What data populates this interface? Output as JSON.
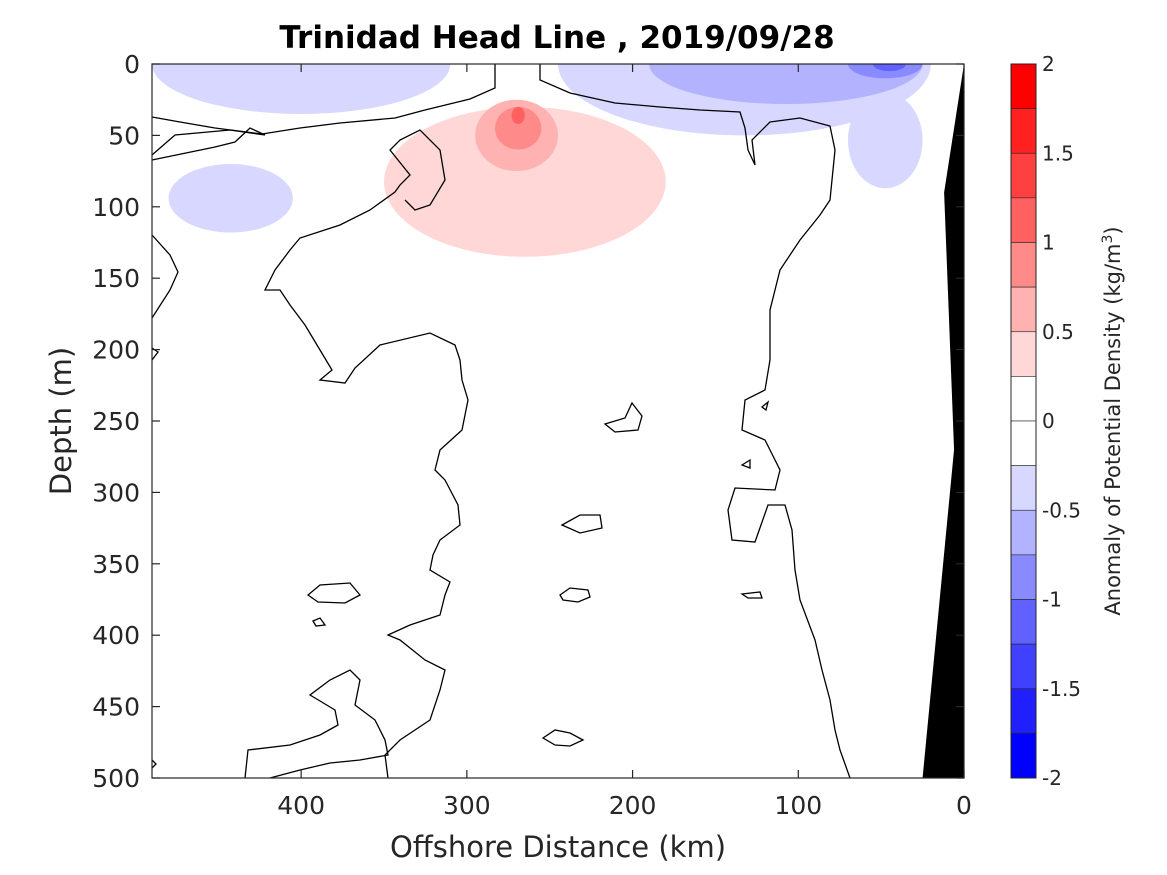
{
  "chart_data": {
    "type": "heatmap",
    "title": "Trinidad Head Line , 2019/09/28",
    "xlabel": "Offshore Distance (km)",
    "ylabel": "Depth (m)",
    "xlim": [
      490,
      0
    ],
    "ylim": [
      0,
      500
    ],
    "x_ticks": [
      400,
      300,
      200,
      100,
      0
    ],
    "y_ticks": [
      0,
      50,
      100,
      150,
      200,
      250,
      300,
      350,
      400,
      450,
      500
    ],
    "colorbar": {
      "label_main": "Anomaly of Potential Density (kg/m",
      "label_sup": "3",
      "label_end": ")",
      "range": [
        -2,
        2
      ],
      "ticks": [
        2,
        1.5,
        1,
        0.5,
        0,
        -0.5,
        -1,
        -1.5,
        -2
      ],
      "bins": [
        {
          "from": 1.75,
          "to": 2.0,
          "color": "#ff0000"
        },
        {
          "from": 1.5,
          "to": 1.75,
          "color": "#ff2020"
        },
        {
          "from": 1.25,
          "to": 1.5,
          "color": "#ff4040"
        },
        {
          "from": 1.0,
          "to": 1.25,
          "color": "#ff6161"
        },
        {
          "from": 0.75,
          "to": 1.0,
          "color": "#ff8a8a"
        },
        {
          "from": 0.5,
          "to": 0.75,
          "color": "#ffb2b2"
        },
        {
          "from": 0.25,
          "to": 0.5,
          "color": "#ffd7d7"
        },
        {
          "from": 0.0,
          "to": 0.25,
          "color": "#ffffff"
        },
        {
          "from": -0.25,
          "to": 0.0,
          "color": "#ffffff"
        },
        {
          "from": -0.5,
          "to": -0.25,
          "color": "#d7d7ff"
        },
        {
          "from": -0.75,
          "to": -0.5,
          "color": "#b2b2ff"
        },
        {
          "from": -1.0,
          "to": -0.75,
          "color": "#8a8aff"
        },
        {
          "from": -1.25,
          "to": -1.0,
          "color": "#6161ff"
        },
        {
          "from": -1.5,
          "to": -1.25,
          "color": "#4040ff"
        },
        {
          "from": -1.75,
          "to": -1.5,
          "color": "#2020ff"
        },
        {
          "from": -2.0,
          "to": -1.75,
          "color": "#0000ff"
        }
      ]
    },
    "features": [
      {
        "kind": "positive-anomaly",
        "level": 0.25,
        "x": [
          350,
          180
        ],
        "y": [
          30,
          135
        ],
        "color": "#ffd7d7"
      },
      {
        "kind": "positive-anomaly",
        "level": 0.5,
        "x": [
          295,
          245
        ],
        "y": [
          25,
          75
        ],
        "color": "#ffb2b2"
      },
      {
        "kind": "positive-anomaly",
        "level": 0.75,
        "x": [
          283,
          255
        ],
        "y": [
          30,
          60
        ],
        "color": "#ff8a8a"
      },
      {
        "kind": "positive-anomaly",
        "level": 1.0,
        "x": [
          273,
          265
        ],
        "y": [
          30,
          42
        ],
        "color": "#ff6161"
      },
      {
        "kind": "negative-anomaly",
        "level": -0.25,
        "x": [
          490,
          310
        ],
        "y": [
          0,
          35
        ],
        "color": "#d7d7ff"
      },
      {
        "kind": "negative-anomaly",
        "level": -0.25,
        "x": [
          480,
          405
        ],
        "y": [
          70,
          118
        ],
        "color": "#d7d7ff"
      },
      {
        "kind": "negative-anomaly",
        "level": -0.25,
        "x": [
          245,
          20
        ],
        "y": [
          0,
          50
        ],
        "color": "#d7d7ff"
      },
      {
        "kind": "negative-anomaly",
        "level": -0.25,
        "x": [
          70,
          25
        ],
        "y": [
          20,
          87
        ],
        "color": "#d7d7ff"
      },
      {
        "kind": "negative-anomaly",
        "level": -0.5,
        "x": [
          190,
          25
        ],
        "y": [
          0,
          28
        ],
        "color": "#b2b2ff"
      },
      {
        "kind": "negative-anomaly",
        "level": -0.75,
        "x": [
          70,
          25
        ],
        "y": [
          0,
          10
        ],
        "color": "#8a8aff"
      },
      {
        "kind": "negative-anomaly",
        "level": -1.0,
        "x": [
          55,
          35
        ],
        "y": [
          0,
          5
        ],
        "color": "#6161ff"
      },
      {
        "kind": "bathymetry",
        "x": [
          25,
          0
        ],
        "y": [
          0,
          500
        ],
        "color": "#000000"
      }
    ]
  }
}
